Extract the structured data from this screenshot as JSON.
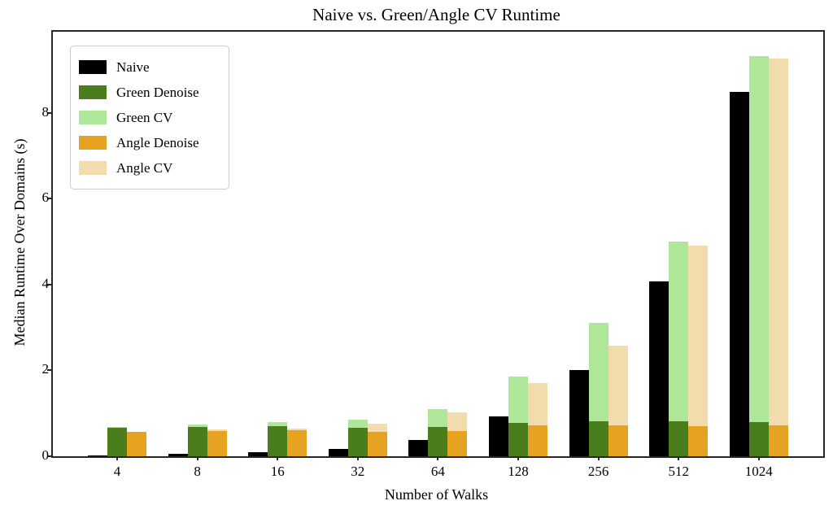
{
  "chart_data": {
    "type": "bar",
    "title": "Naive vs. Green/Angle CV Runtime",
    "xlabel": "Number of Walks",
    "ylabel": "Median Runtime Over Domains (s)",
    "categories": [
      "4",
      "8",
      "16",
      "32",
      "64",
      "128",
      "256",
      "512",
      "1024"
    ],
    "yticks": [
      0,
      2,
      4,
      6,
      8
    ],
    "ylim": [
      0,
      9.89
    ],
    "grid": false,
    "legend_position": "upper-left",
    "bar_layout": "grouped: Naive bar on left; Green CV drawn behind Green Denoise in middle slot; Angle CV drawn behind Angle Denoise in right slot",
    "series": [
      {
        "name": "Naive",
        "color": "#000000",
        "values": [
          0.02,
          0.05,
          0.09,
          0.18,
          0.37,
          0.92,
          2.0,
          4.08,
          8.48
        ]
      },
      {
        "name": "Green Denoise",
        "color": "#4a7d1c",
        "values": [
          0.67,
          0.68,
          0.7,
          0.66,
          0.68,
          0.78,
          0.81,
          0.82,
          0.8
        ]
      },
      {
        "name": "Green CV",
        "color": "#aee79a",
        "values": [
          0.69,
          0.73,
          0.79,
          0.86,
          1.1,
          1.85,
          3.1,
          5.0,
          9.33
        ]
      },
      {
        "name": "Angle Denoise",
        "color": "#e6a322",
        "values": [
          0.57,
          0.58,
          0.6,
          0.57,
          0.59,
          0.72,
          0.72,
          0.71,
          0.72
        ]
      },
      {
        "name": "Angle CV",
        "color": "#f2dcae",
        "values": [
          0.55,
          0.63,
          0.65,
          0.75,
          1.02,
          1.71,
          2.58,
          4.9,
          9.27
        ]
      }
    ]
  }
}
